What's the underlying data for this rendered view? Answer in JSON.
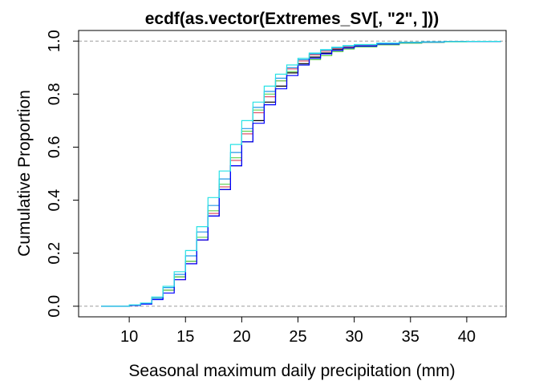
{
  "chart_data": {
    "type": "line",
    "title": "ecdf(as.vector(Extremes_SV[, \"2\", ]))",
    "xlabel": "Seasonal maximum daily precipitation (mm)",
    "ylabel": "Cumulative Proportion",
    "xlim": [
      5.5,
      43.5
    ],
    "ylim": [
      -0.04,
      1.04
    ],
    "xticks": [
      10,
      15,
      20,
      25,
      30,
      35,
      40
    ],
    "yticks": [
      0.0,
      0.2,
      0.4,
      0.6,
      0.8,
      1.0
    ],
    "reference_lines_y": [
      0,
      1
    ],
    "grid": false,
    "legend": "none",
    "series": [
      {
        "color": "#000000",
        "x": [
          7.5,
          10,
          11,
          12,
          13,
          14,
          15,
          16,
          17,
          18,
          19,
          20,
          21,
          22,
          23,
          24,
          25,
          26,
          27,
          28,
          29,
          30,
          32,
          34,
          36,
          38,
          40,
          43
        ],
        "y": [
          0.0,
          0.004,
          0.01,
          0.03,
          0.06,
          0.11,
          0.17,
          0.25,
          0.34,
          0.44,
          0.53,
          0.62,
          0.7,
          0.77,
          0.83,
          0.88,
          0.915,
          0.94,
          0.955,
          0.968,
          0.975,
          0.982,
          0.99,
          0.995,
          0.997,
          0.998,
          0.999,
          1.0
        ]
      },
      {
        "color": "#df536b",
        "x": [
          7.5,
          10,
          11,
          12,
          13,
          14,
          15,
          16,
          17,
          18,
          19,
          20,
          21,
          22,
          23,
          24,
          25,
          26,
          27,
          28,
          29,
          30,
          32,
          34,
          36,
          38,
          40,
          43
        ],
        "y": [
          0.0,
          0.004,
          0.01,
          0.03,
          0.06,
          0.1,
          0.16,
          0.25,
          0.35,
          0.45,
          0.55,
          0.65,
          0.73,
          0.79,
          0.85,
          0.895,
          0.925,
          0.948,
          0.962,
          0.972,
          0.978,
          0.984,
          0.991,
          0.995,
          0.997,
          0.998,
          0.999,
          1.0
        ]
      },
      {
        "color": "#61d04f",
        "x": [
          7.5,
          10,
          11,
          12,
          13,
          14,
          15,
          16,
          17,
          18,
          19,
          20,
          21,
          22,
          23,
          24,
          25,
          26,
          27,
          28,
          29,
          30,
          32,
          34,
          36,
          38,
          40,
          43
        ],
        "y": [
          0.0,
          0.004,
          0.01,
          0.03,
          0.06,
          0.11,
          0.17,
          0.26,
          0.36,
          0.46,
          0.56,
          0.66,
          0.74,
          0.8,
          0.85,
          0.885,
          0.91,
          0.93,
          0.945,
          0.96,
          0.97,
          0.978,
          0.986,
          0.992,
          0.995,
          0.997,
          0.999,
          1.0
        ]
      },
      {
        "color": "#2297e6",
        "x": [
          7.5,
          10,
          11,
          12,
          13,
          14,
          15,
          16,
          17,
          18,
          19,
          20,
          21,
          22,
          23,
          24,
          25,
          26,
          27,
          28,
          29,
          30,
          32,
          34,
          36,
          38,
          40,
          43
        ],
        "y": [
          0.0,
          0.004,
          0.01,
          0.03,
          0.07,
          0.12,
          0.19,
          0.28,
          0.38,
          0.48,
          0.58,
          0.67,
          0.75,
          0.81,
          0.86,
          0.9,
          0.93,
          0.952,
          0.966,
          0.975,
          0.981,
          0.986,
          0.992,
          0.995,
          0.997,
          0.998,
          0.999,
          1.0
        ]
      },
      {
        "color": "#0000ff",
        "x": [
          7.5,
          10,
          11,
          12,
          13,
          14,
          15,
          16,
          17,
          18,
          19,
          20,
          21,
          22,
          23,
          24,
          25,
          26,
          27,
          28,
          29,
          30,
          32,
          34,
          36,
          38,
          40,
          43
        ],
        "y": [
          0.0,
          0.003,
          0.008,
          0.025,
          0.05,
          0.1,
          0.16,
          0.25,
          0.34,
          0.44,
          0.53,
          0.62,
          0.69,
          0.76,
          0.82,
          0.87,
          0.91,
          0.935,
          0.952,
          0.965,
          0.974,
          0.981,
          0.989,
          0.994,
          0.996,
          0.998,
          0.999,
          1.0
        ]
      },
      {
        "color": "#28e2e5",
        "x": [
          7.5,
          10,
          11,
          12,
          13,
          14,
          15,
          16,
          17,
          18,
          19,
          20,
          21,
          22,
          23,
          24,
          25,
          26,
          27,
          28,
          29,
          30,
          32,
          34,
          36,
          38,
          40,
          43
        ],
        "y": [
          0.0,
          0.005,
          0.012,
          0.035,
          0.075,
          0.13,
          0.21,
          0.3,
          0.41,
          0.51,
          0.61,
          0.7,
          0.77,
          0.83,
          0.875,
          0.91,
          0.935,
          0.955,
          0.968,
          0.977,
          0.983,
          0.987,
          0.992,
          0.995,
          0.997,
          0.998,
          0.999,
          1.0
        ]
      }
    ]
  }
}
